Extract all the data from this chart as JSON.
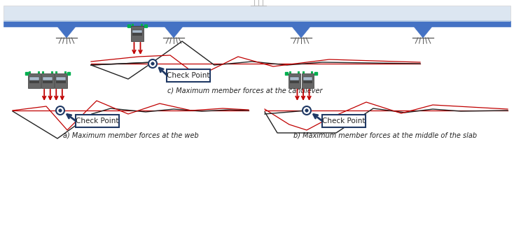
{
  "bg_color": "#ffffff",
  "label_a": "a) Maximum member forces at the web",
  "label_b": "b) Maximum member forces at the middle of the slab",
  "label_c": "c) Maximum member forces at the cantilever",
  "checkpoint_text": "Check Point",
  "bridge_blue": "#4472c4",
  "bridge_light": "#b8cce4",
  "bridge_lighter": "#dce6f1",
  "red": "#c00000",
  "dark": "#222222",
  "dark_navy": "#1f3864",
  "green": "#00b050",
  "support_blue": "#4472c4",
  "gray_dark": "#555555",
  "gray_mid": "#888888",
  "gray_light": "#aaaaaa",
  "checkpoint_bg": "#1f3864",
  "checkpoint_border": "#1f3864",
  "checkpoint_text_color": "#ffffff"
}
